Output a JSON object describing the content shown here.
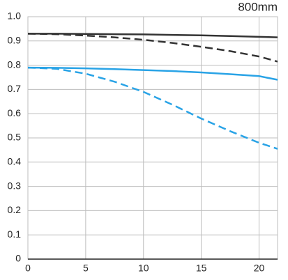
{
  "chart_data": {
    "type": "line",
    "title": "800mm",
    "x": [
      0,
      2.5,
      5,
      7.5,
      10,
      12.5,
      15,
      17.5,
      20,
      21.6
    ],
    "series": [
      {
        "color": "#333333",
        "style": "solid",
        "values": [
          0.93,
          0.93,
          0.929,
          0.928,
          0.927,
          0.925,
          0.923,
          0.92,
          0.917,
          0.915
        ]
      },
      {
        "color": "#333333",
        "style": "dashed",
        "values": [
          0.93,
          0.928,
          0.922,
          0.915,
          0.905,
          0.892,
          0.876,
          0.858,
          0.836,
          0.815
        ]
      },
      {
        "color": "#29a3e6",
        "style": "solid",
        "values": [
          0.79,
          0.789,
          0.787,
          0.784,
          0.78,
          0.776,
          0.77,
          0.763,
          0.755,
          0.74
        ]
      },
      {
        "color": "#29a3e6",
        "style": "dashed",
        "values": [
          0.79,
          0.785,
          0.765,
          0.732,
          0.69,
          0.637,
          0.58,
          0.528,
          0.48,
          0.455
        ]
      }
    ],
    "xlim": [
      0,
      21.6
    ],
    "xticks": [
      0,
      5,
      10,
      15,
      20
    ],
    "ylim": [
      0,
      1
    ],
    "yticks": [
      0,
      0.1,
      0.2,
      0.3,
      0.4,
      0.5,
      0.6,
      0.7,
      0.8,
      0.9,
      {
        "value": 1,
        "label": "1.0"
      }
    ],
    "grid": true
  }
}
